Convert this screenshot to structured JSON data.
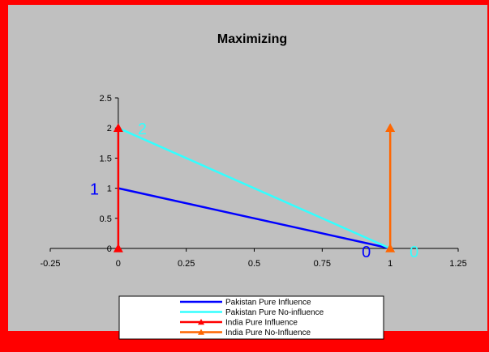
{
  "colors": {
    "outer_border": "#ff0000",
    "plot_bg": "#c0c0c0",
    "pakistan_pure_influence": "#0000ff",
    "pakistan_pure_no_influence": "#33ffff",
    "india_pure_influence": "#ff0000",
    "india_pure_no_influence": "#ff6600"
  },
  "chart_data": {
    "type": "line",
    "title": "Maximizing",
    "xlabel": "",
    "ylabel": "",
    "xlim": [
      -0.25,
      1.25
    ],
    "ylim": [
      0,
      2.5
    ],
    "x_ticks": [
      "-0.25",
      "0",
      "0.25",
      "0.5",
      "0.75",
      "1",
      "1.25"
    ],
    "y_ticks": [
      "0",
      "0.5",
      "1",
      "1.5",
      "2",
      "2.5"
    ],
    "grid": false,
    "legend_position": "bottom",
    "series": [
      {
        "name": "Pakistan Pure Influence",
        "color": "#0000ff",
        "marker": "none",
        "points": [
          [
            0,
            1
          ],
          [
            1,
            0
          ]
        ]
      },
      {
        "name": "Pakistan Pure No-influence",
        "color": "#33ffff",
        "marker": "none",
        "points": [
          [
            0,
            2
          ],
          [
            1,
            0
          ]
        ]
      },
      {
        "name": "India Pure Influence",
        "color": "#ff0000",
        "marker": "triangle",
        "points": [
          [
            0,
            0
          ],
          [
            0,
            2
          ]
        ]
      },
      {
        "name": "India Pure No-Influence",
        "color": "#ff6600",
        "marker": "triangle",
        "points": [
          [
            1,
            0
          ],
          [
            1,
            2
          ]
        ]
      }
    ],
    "annotations": [
      {
        "text": "1",
        "x": 0,
        "y": 1,
        "color": "#0000ff"
      },
      {
        "text": "2",
        "x": 0,
        "y": 2,
        "color": "#33ffff"
      },
      {
        "text": "0",
        "x": 1,
        "y": 0,
        "color": "#0000ff"
      },
      {
        "text": "0",
        "x": 1,
        "y": 0,
        "color": "#33ffff"
      }
    ]
  }
}
